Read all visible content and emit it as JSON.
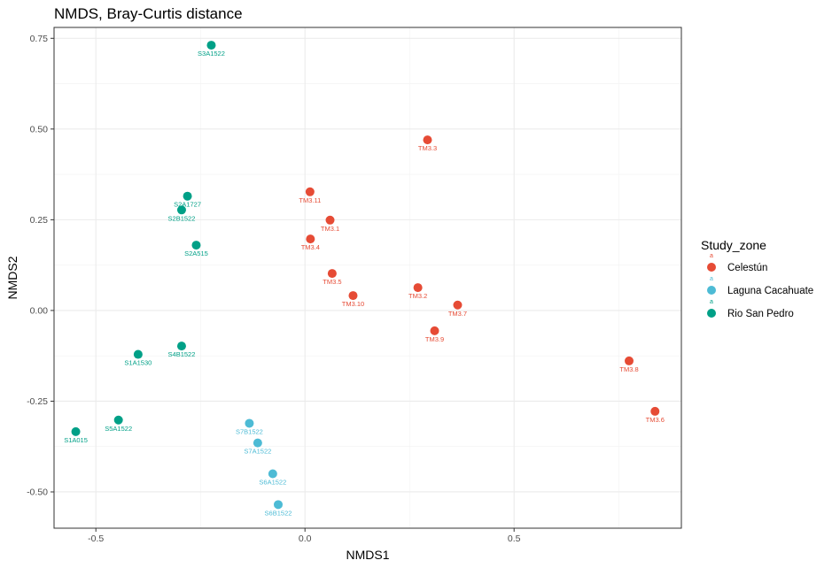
{
  "chart_data": {
    "type": "scatter",
    "title": "NMDS, Bray-Curtis distance",
    "xlabel": "NMDS1",
    "ylabel": "NMDS2",
    "xlim": [
      -0.6,
      0.9
    ],
    "ylim": [
      -0.6,
      0.78
    ],
    "x_ticks": [
      -0.5,
      0.0,
      0.5
    ],
    "x_tick_labels": [
      "-0.5",
      "0.0",
      "0.5"
    ],
    "y_ticks": [
      -0.5,
      -0.25,
      0.0,
      0.25,
      0.5,
      0.75
    ],
    "y_tick_labels": [
      "-0.50",
      "-0.25",
      "0.00",
      "0.25",
      "0.50",
      "0.75"
    ],
    "grid": true,
    "legend_position": "right",
    "legend_title": "Study_zone",
    "legend_key_letter": "a",
    "series": [
      {
        "name": "Celestún",
        "color": "#E64B35",
        "points": [
          {
            "label": "TM3.3",
            "x": 0.293,
            "y": 0.47
          },
          {
            "label": "TM3.11",
            "x": 0.012,
            "y": 0.327
          },
          {
            "label": "TM3.1",
            "x": 0.06,
            "y": 0.249
          },
          {
            "label": "TM3.4",
            "x": 0.013,
            "y": 0.197
          },
          {
            "label": "TM3.5",
            "x": 0.065,
            "y": 0.102
          },
          {
            "label": "TM3.10",
            "x": 0.115,
            "y": 0.041
          },
          {
            "label": "TM3.2",
            "x": 0.27,
            "y": 0.063
          },
          {
            "label": "TM3.7",
            "x": 0.365,
            "y": 0.015
          },
          {
            "label": "TM3.9",
            "x": 0.31,
            "y": -0.056
          },
          {
            "label": "TM3.8",
            "x": 0.775,
            "y": -0.139
          },
          {
            "label": "TM3.6",
            "x": 0.837,
            "y": -0.278
          }
        ]
      },
      {
        "name": "Laguna Cacahuate",
        "color": "#4DBBD5",
        "points": [
          {
            "label": "S7B1522",
            "x": -0.133,
            "y": -0.311
          },
          {
            "label": "S7A1522",
            "x": -0.113,
            "y": -0.365
          },
          {
            "label": "S6A1522",
            "x": -0.077,
            "y": -0.45
          },
          {
            "label": "S6B1522",
            "x": -0.064,
            "y": -0.535
          }
        ]
      },
      {
        "name": "Rio San Pedro",
        "color": "#00A087",
        "points": [
          {
            "label": "S3A1522",
            "x": -0.224,
            "y": 0.731
          },
          {
            "label": "S2A1727",
            "x": -0.281,
            "y": 0.315
          },
          {
            "label": "S2B1522",
            "x": -0.295,
            "y": 0.277
          },
          {
            "label": "S2A515",
            "x": -0.26,
            "y": 0.18
          },
          {
            "label": "S4B1522",
            "x": -0.295,
            "y": -0.098
          },
          {
            "label": "S1A1530",
            "x": -0.399,
            "y": -0.121
          },
          {
            "label": "S5A1522",
            "x": -0.446,
            "y": -0.302
          },
          {
            "label": "S1A015",
            "x": -0.548,
            "y": -0.334
          }
        ]
      }
    ]
  }
}
